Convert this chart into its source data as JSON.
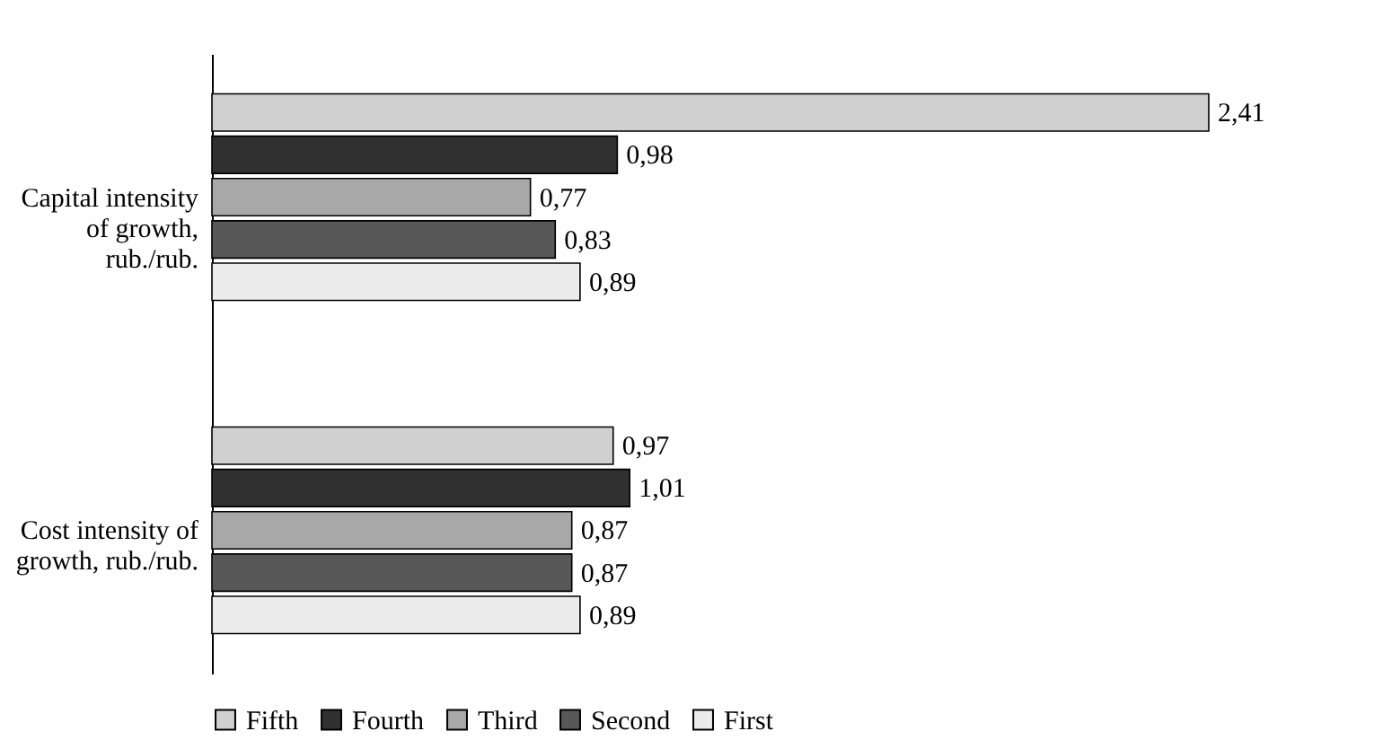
{
  "chart_data": {
    "type": "bar",
    "orientation": "horizontal",
    "categories": [
      "Capital intensity of growth, rub./rub.",
      "Cost intensity of growth, rub./rub."
    ],
    "series": [
      {
        "name": "Fifth",
        "color": "#d0d0d0",
        "values": [
          2.41,
          0.97
        ],
        "value_labels": [
          "2,41",
          "0,97"
        ]
      },
      {
        "name": "Fourth",
        "color": "#303030",
        "values": [
          0.98,
          1.01
        ],
        "value_labels": [
          "0,98",
          "1,01"
        ]
      },
      {
        "name": "Third",
        "color": "#a8a8a8",
        "values": [
          0.77,
          0.87
        ],
        "value_labels": [
          "0,77",
          "0,87"
        ]
      },
      {
        "name": "Second",
        "color": "#585858",
        "values": [
          0.83,
          0.87
        ],
        "value_labels": [
          "0,83",
          "0,87"
        ]
      },
      {
        "name": "First",
        "color": "#ececec",
        "values": [
          0.89,
          0.89
        ],
        "value_labels": [
          "0,89",
          "0,89"
        ]
      }
    ],
    "legend": "bottom",
    "grid": false
  }
}
